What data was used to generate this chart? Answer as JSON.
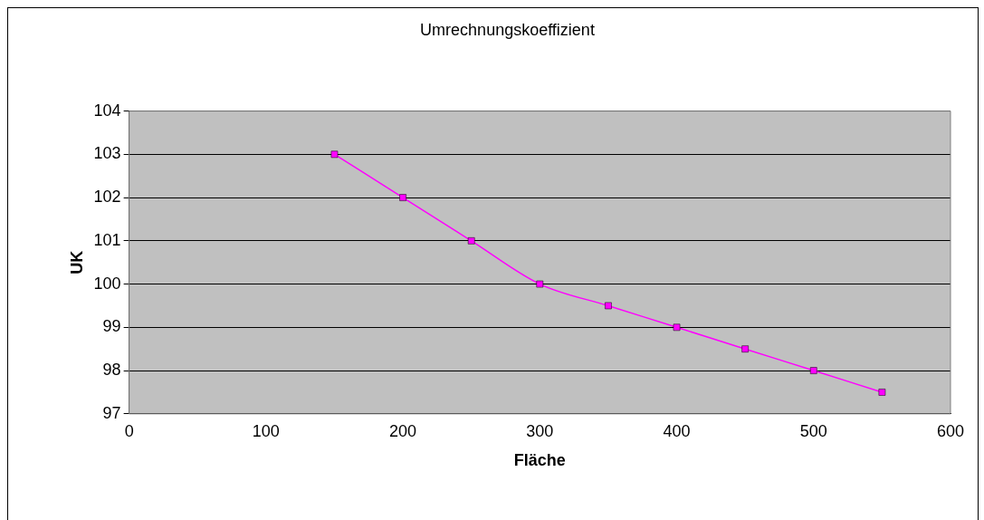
{
  "chart_data": {
    "type": "line",
    "title": "Umrechnungskoeffizient",
    "xlabel": "Fläche",
    "ylabel": "UK",
    "x": [
      150,
      200,
      250,
      300,
      350,
      400,
      450,
      500,
      550
    ],
    "series": [
      {
        "color": "#ff00ff",
        "values": [
          103,
          102,
          101,
          100,
          99.5,
          99,
          98.5,
          98,
          97.5
        ]
      }
    ],
    "xlim": [
      0,
      600
    ],
    "xticks": [
      0,
      100,
      200,
      300,
      400,
      500,
      600
    ],
    "ylim": [
      97,
      104
    ],
    "yticks": [
      97,
      98,
      99,
      100,
      101,
      102,
      103,
      104
    ],
    "grid": "y",
    "legend": false,
    "marker": "square",
    "line_style": "solid"
  }
}
